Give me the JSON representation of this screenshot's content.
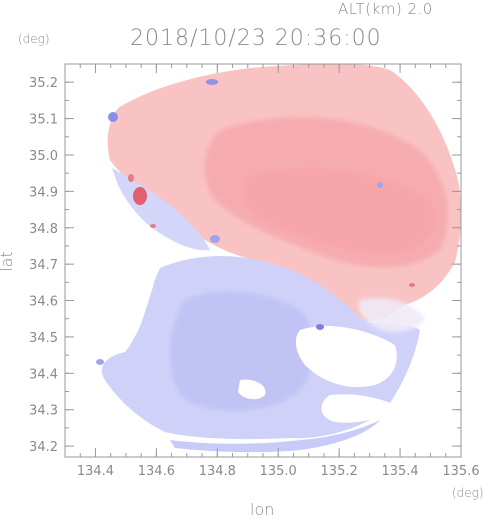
{
  "header": {
    "altitude_label": "ALT(km)  2.0",
    "timestamp": "2018/10/23 20:36:00"
  },
  "axes": {
    "x_label": "lon",
    "y_label": "lat",
    "x_unit": "(deg)",
    "y_unit": "(deg)"
  },
  "chart_data": {
    "type": "heatmap",
    "x_ticks": [
      "134.4",
      "134.6",
      "134.8",
      "135.0",
      "135.2",
      "135.4",
      "135.6"
    ],
    "y_ticks": [
      "35.2",
      "35.1",
      "35.0",
      "34.9",
      "34.8",
      "34.7",
      "34.6",
      "34.5",
      "34.4",
      "34.3",
      "34.2"
    ],
    "xlim": [
      134.3,
      135.6
    ],
    "ylim": [
      34.17,
      35.25
    ],
    "colors": {
      "positive": "#f7b3b3",
      "negative": "#c4c6f6",
      "strong_positive": "#e06070",
      "strong_negative": "#7a7ee0"
    }
  }
}
